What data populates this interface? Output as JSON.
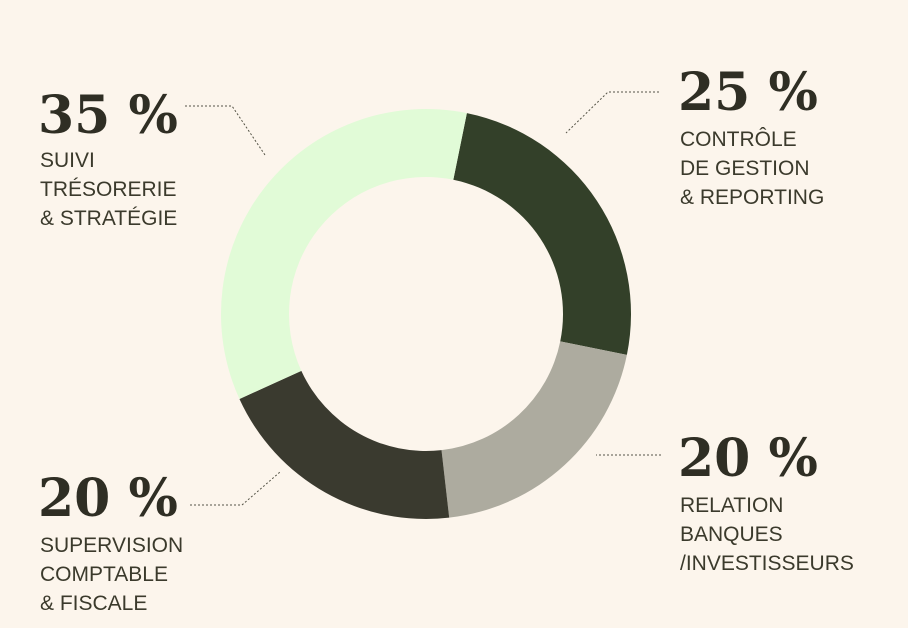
{
  "chart_data": {
    "type": "pie",
    "variant": "donut",
    "slices": [
      {
        "label_lines": [
          "CONTRÔLE",
          "DE GESTION",
          "& REPORTING"
        ],
        "value": 25,
        "value_label": "25 %",
        "color": "#334029"
      },
      {
        "label_lines": [
          "RELATION",
          "BANQUES",
          "/INVESTISSEURS"
        ],
        "value": 20,
        "value_label": "20 %",
        "color": "#adab9f"
      },
      {
        "label_lines": [
          "SUPERVISION",
          "COMPTABLE",
          "& FISCALE"
        ],
        "value": 20,
        "value_label": "20 %",
        "color": "#3a3a2f"
      },
      {
        "label_lines": [
          "SUIVI",
          "TRÉSORERIE",
          "& STRATÉGIE"
        ],
        "value": 35,
        "value_label": "35 %",
        "color": "#e1fbd7"
      }
    ],
    "background": "#fcf5ec",
    "legend": "none",
    "label_placement": "outside with dotted leader lines"
  }
}
